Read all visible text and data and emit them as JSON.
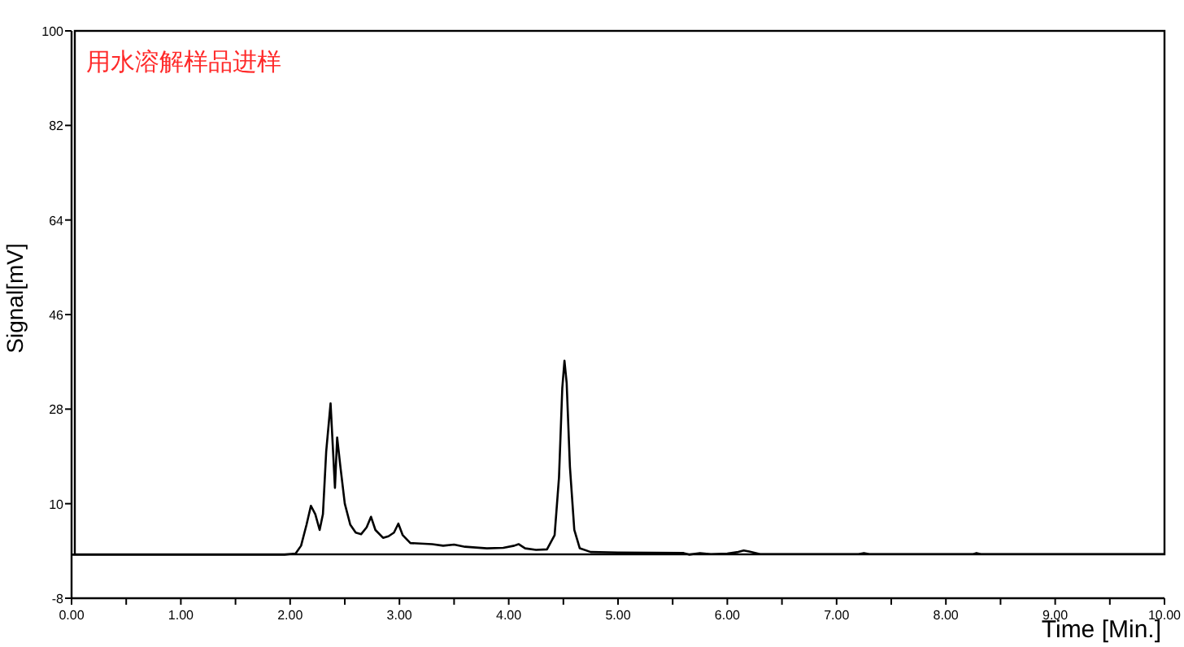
{
  "chart_data": {
    "type": "line",
    "xlabel": "Time [Min.]",
    "ylabel": "Signal[mV]",
    "annotations": [
      "用水溶解样品进样"
    ],
    "xlim": [
      0,
      10
    ],
    "ylim": [
      -8,
      100
    ],
    "xticks": [
      {
        "value": 0,
        "label": "0.00"
      },
      {
        "value": 0.5,
        "label": null
      },
      {
        "value": 1,
        "label": "1.00"
      },
      {
        "value": 1.5,
        "label": null
      },
      {
        "value": 2,
        "label": "2.00"
      },
      {
        "value": 2.5,
        "label": null
      },
      {
        "value": 3,
        "label": "3.00"
      },
      {
        "value": 3.5,
        "label": null
      },
      {
        "value": 4,
        "label": "4.00"
      },
      {
        "value": 4.5,
        "label": null
      },
      {
        "value": 5,
        "label": "5.00"
      },
      {
        "value": 5.5,
        "label": null
      },
      {
        "value": 6,
        "label": "6.00"
      },
      {
        "value": 6.5,
        "label": null
      },
      {
        "value": 7,
        "label": "7.00"
      },
      {
        "value": 7.5,
        "label": null
      },
      {
        "value": 8,
        "label": "8.00"
      },
      {
        "value": 8.5,
        "label": null
      },
      {
        "value": 9,
        "label": "9.00"
      },
      {
        "value": 9.5,
        "label": null
      },
      {
        "value": 10,
        "label": "10.00"
      }
    ],
    "yticks": [
      -8,
      10,
      28,
      46,
      64,
      82,
      100
    ],
    "line_style": "solid",
    "x": [
      0,
      1.95,
      2.05,
      2.1,
      2.15,
      2.19,
      2.23,
      2.27,
      2.3,
      2.33,
      2.37,
      2.4,
      2.41,
      2.43,
      2.46,
      2.5,
      2.55,
      2.6,
      2.65,
      2.7,
      2.74,
      2.78,
      2.85,
      2.9,
      2.95,
      2.99,
      3.03,
      3.1,
      3.3,
      3.4,
      3.5,
      3.6,
      3.8,
      3.95,
      4.05,
      4.09,
      4.15,
      4.25,
      4.35,
      4.42,
      4.46,
      4.49,
      4.51,
      4.53,
      4.56,
      4.6,
      4.65,
      4.75,
      5.0,
      5.6,
      5.65,
      5.75,
      5.85,
      6.0,
      6.1,
      6.15,
      6.2,
      6.3,
      7.2,
      7.25,
      7.3,
      8.25,
      8.28,
      8.32,
      10
    ],
    "series": [
      {
        "color": "#000000",
        "values": [
          0.3,
          0.3,
          0.5,
          2,
          6,
          9.6,
          8,
          5,
          8,
          20,
          29.1,
          17,
          13,
          22.6,
          17,
          10,
          6,
          4.5,
          4.2,
          5.5,
          7.5,
          5,
          3.5,
          3.8,
          4.5,
          6.2,
          4,
          2.5,
          2.3,
          2,
          2.2,
          1.8,
          1.5,
          1.6,
          2,
          2.3,
          1.5,
          1.2,
          1.3,
          4,
          15,
          32,
          37.2,
          33,
          17,
          5,
          1.5,
          0.8,
          0.7,
          0.6,
          0.3,
          0.6,
          0.4,
          0.5,
          0.8,
          1.1,
          0.9,
          0.4,
          0.4,
          0.6,
          0.4,
          0.4,
          0.6,
          0.4,
          0.4
        ]
      }
    ]
  }
}
